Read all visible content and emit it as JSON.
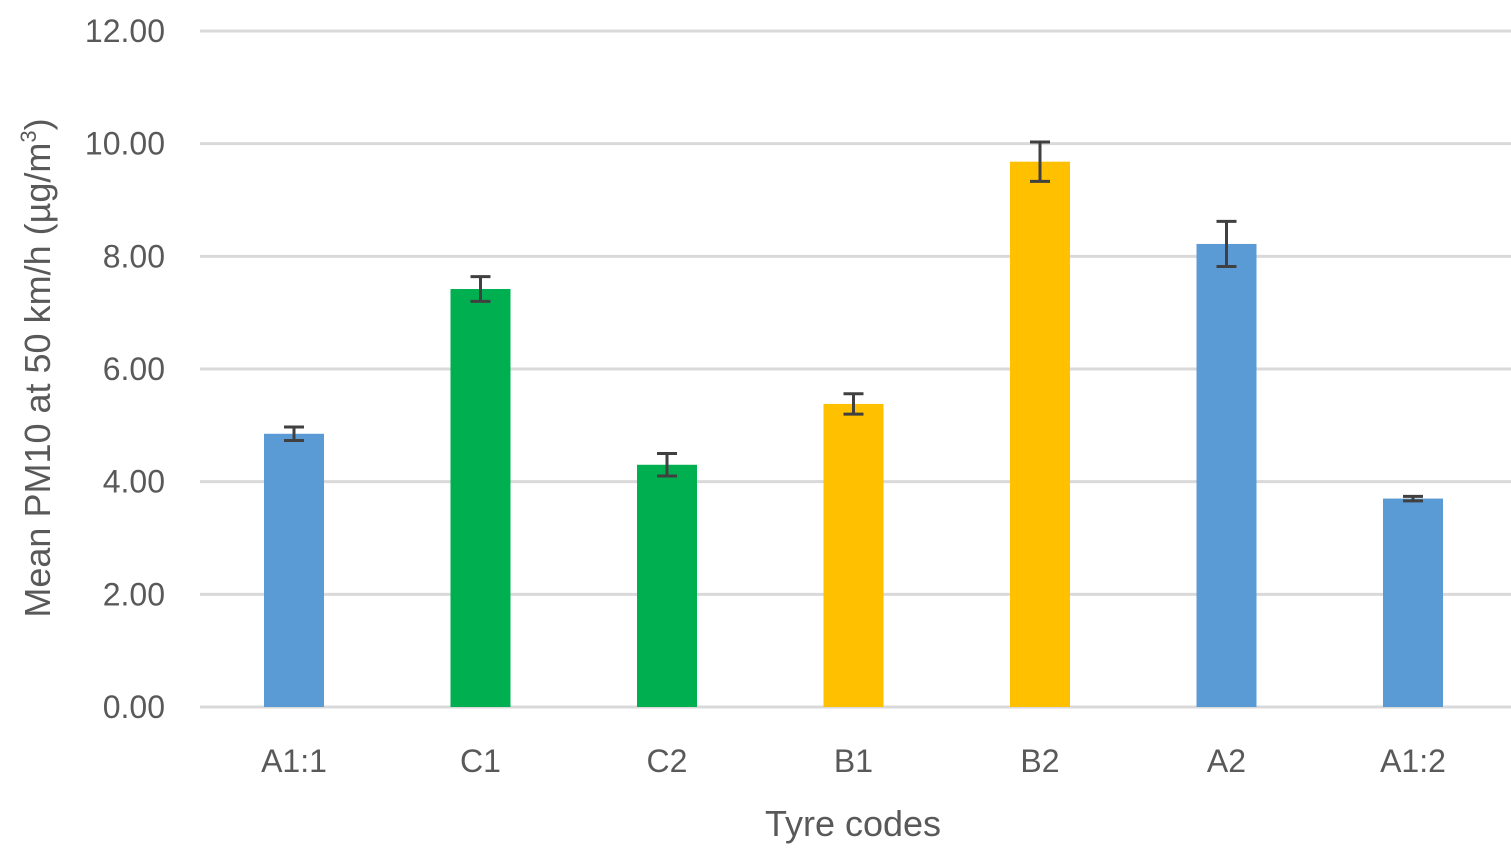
{
  "chart_data": {
    "type": "bar",
    "title": "",
    "xlabel": "Tyre codes",
    "ylabel_main": "Mean PM10 at 50 km/h (µg/m",
    "ylabel_sup": "3",
    "ylabel_end": ")",
    "ylim": [
      0,
      12
    ],
    "yticks": [
      0,
      2,
      4,
      6,
      8,
      10,
      12
    ],
    "ytick_labels": [
      "0.00",
      "2.00",
      "4.00",
      "6.00",
      "8.00",
      "10.00",
      "12.00"
    ],
    "grid": true,
    "legend": "none",
    "categories": [
      "A1:1",
      "C1",
      "C2",
      "B1",
      "B2",
      "A2",
      "A1:2"
    ],
    "values": [
      4.85,
      7.42,
      4.3,
      5.38,
      9.68,
      8.22,
      3.7
    ],
    "error": [
      0.12,
      0.22,
      0.2,
      0.18,
      0.35,
      0.4,
      0.04
    ],
    "colors": [
      "#5b9bd5",
      "#00b050",
      "#00b050",
      "#ffc000",
      "#ffc000",
      "#5b9bd5",
      "#5b9bd5"
    ]
  }
}
